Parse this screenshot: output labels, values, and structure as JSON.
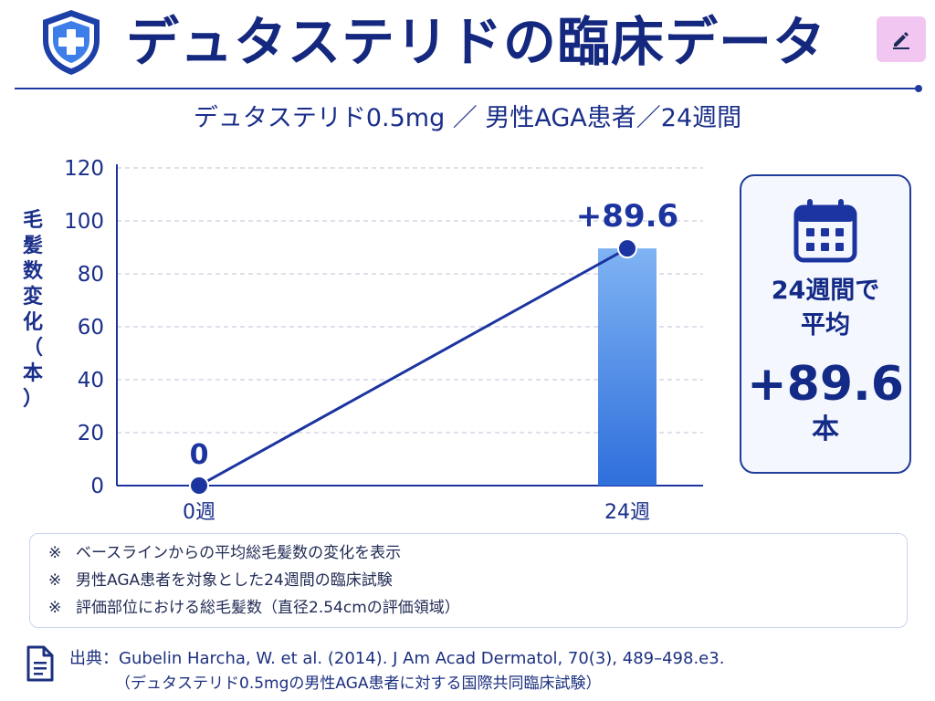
{
  "header": {
    "title": "デュタステリドの臨床データ",
    "shield_icon": "shield-medical-cross-icon",
    "edit_icon": "pencil-icon",
    "accent_color": "#14287f",
    "edit_button_color": "#f1c6f0"
  },
  "subtitle": "デュタステリド0.5mg ／ 男性AGA患者／24週間",
  "chart_data": {
    "type": "bar",
    "categories": [
      "0週",
      "24週"
    ],
    "values": [
      0,
      89.6
    ],
    "data_labels": [
      "0",
      "+89.6"
    ],
    "overlay_line": {
      "x": [
        "0週",
        "24週"
      ],
      "y": [
        0,
        89.6
      ]
    },
    "title": "",
    "xlabel": "",
    "ylabel": "毛髪数変化（本）",
    "ylim": [
      0,
      120
    ],
    "yticks": [
      "0",
      "20",
      "40",
      "60",
      "80",
      "100",
      "120"
    ],
    "grid": true,
    "bar_color": "#2f6fdc",
    "line_color": "#1b34a0"
  },
  "summary": {
    "icon": "calendar-icon",
    "line1": "24週間で",
    "line2": "平均",
    "value": "+89.6",
    "unit": "本"
  },
  "notes": {
    "mark": "※",
    "items": [
      "ベースラインからの平均総毛髪数の変化を表示",
      "男性AGA患者を対象とした24週間の臨床試験",
      "評価部位における総毛髪数（直径2.54cmの評価領域）"
    ]
  },
  "citation": {
    "icon": "document-icon",
    "line1": "出典：Gubelin Harcha, W. et al. (2014). J Am Acad Dermatol, 70(3), 489–498.e3.",
    "line2": "（デュタステリド0.5mgの男性AGA患者に対する国際共同臨床試験）"
  }
}
